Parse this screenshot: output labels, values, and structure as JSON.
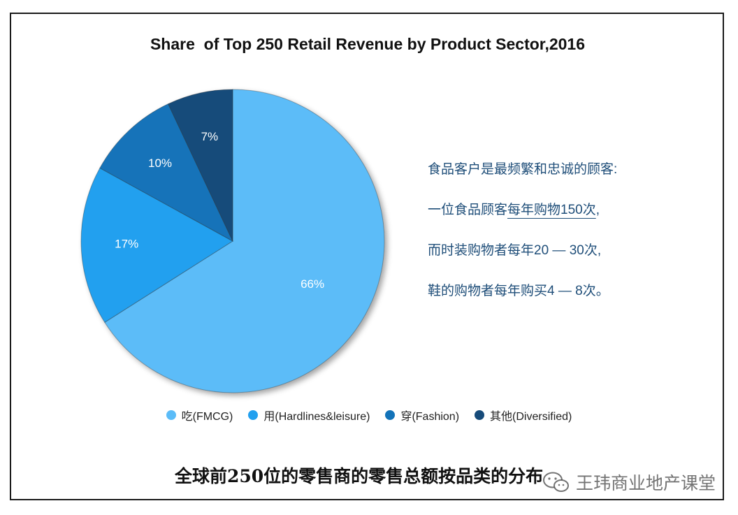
{
  "chart_data": {
    "type": "pie",
    "title": "Share  of Top 250 Retail Revenue by Product Sector,2016",
    "slices": [
      {
        "label": "吃(FMCG)",
        "value": 66,
        "display": "66%",
        "color": "#5bbcf8"
      },
      {
        "label": "用(Hardlines&leisure)",
        "value": 17,
        "display": "17%",
        "color": "#22a0ef"
      },
      {
        "label": "穿(Fashion)",
        "value": 10,
        "display": "10%",
        "color": "#1373b9"
      },
      {
        "label": "其他(Diversified)",
        "value": 7,
        "display": "7%",
        "color": "#174b7a"
      }
    ],
    "legend_position": "bottom"
  },
  "annotation": {
    "line1": "食品客户是最频繁和忠诚的顾客:",
    "line2_a": "一位食品顾客",
    "line2_b": "每年购物150次",
    "line2_c": ",",
    "line3": "而时装购物者每年20 — 30次,",
    "line4": "鞋的购物者每年购买4 — 8次。"
  },
  "caption": "全球前250位的零售商的零售总额按品类的分布",
  "watermark": "王玮商业地产课堂"
}
